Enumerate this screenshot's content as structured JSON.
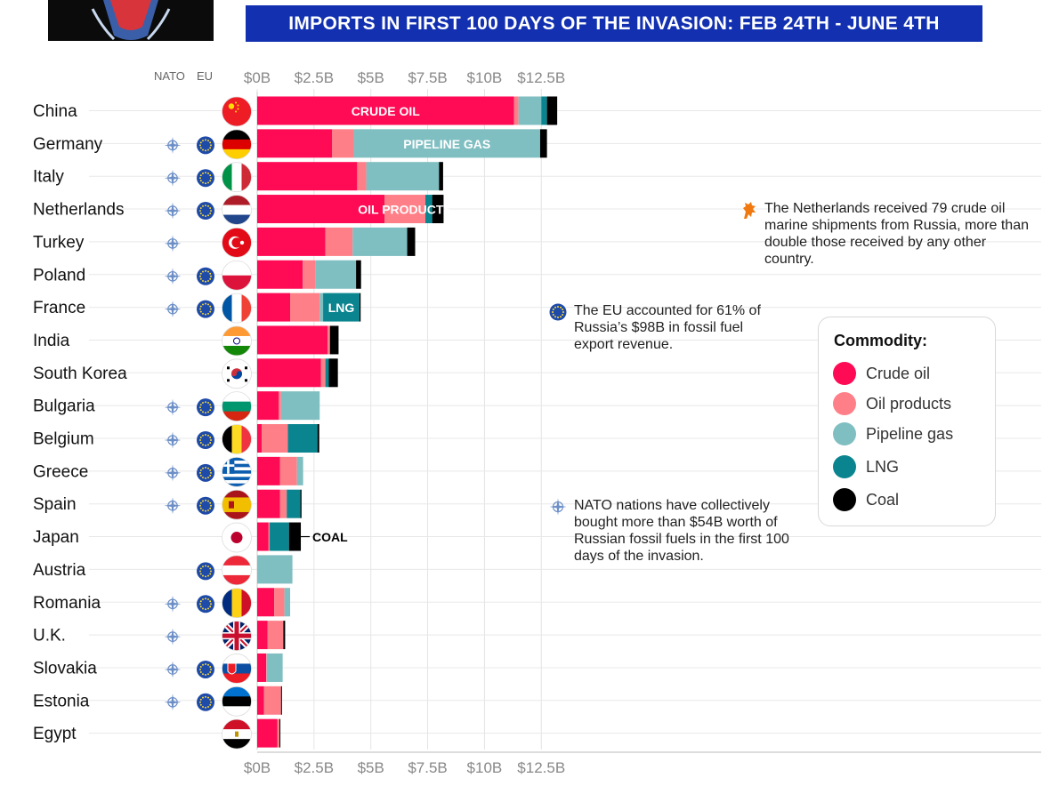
{
  "header": {
    "banner_title": "IMPORTS IN FIRST 100 DAYS OF THE INVASION:  FEB 24TH - JUNE 4TH"
  },
  "columns": {
    "nato": "NATO",
    "eu": "EU"
  },
  "colors": {
    "crude_oil": "#ff0a54",
    "oil_products": "#ff7f88",
    "pipeline_gas": "#7fbec1",
    "lng": "#0a858f",
    "coal": "#000000",
    "nato_icon": "#6c8fc7",
    "eu_icon": "#1e4aa8",
    "netherlands_icon": "#f07a10",
    "banner": "#1230b0"
  },
  "legend": {
    "title": "Commodity:",
    "items": [
      "Crude oil",
      "Oil products",
      "Pipeline gas",
      "LNG",
      "Coal"
    ]
  },
  "notes": {
    "netherlands": "The Netherlands received 79 crude oil marine shipments from Russia, more than double those received by any other country.",
    "eu": "The EU accounted for 61% of Russia’s $98B in fossil fuel export revenue.",
    "nato": "NATO nations have collectively bought more than $54B worth of Russian fossil fuels in the first 100 days of the invasion."
  },
  "chart_data": {
    "type": "bar",
    "orientation": "horizontal",
    "stacked": true,
    "xlim": [
      0,
      13.5
    ],
    "x_ticks": [
      {
        "value": 0,
        "label": "$0B"
      },
      {
        "value": 2.5,
        "label": "$2.5B"
      },
      {
        "value": 5,
        "label": "$5B"
      },
      {
        "value": 7.5,
        "label": "$7.5B"
      },
      {
        "value": 10,
        "label": "$10B"
      },
      {
        "value": 12.5,
        "label": "$12.5B"
      }
    ],
    "grid": true,
    "categories": [
      "China",
      "Germany",
      "Italy",
      "Netherlands",
      "Turkey",
      "Poland",
      "France",
      "India",
      "South Korea",
      "Bulgaria",
      "Belgium",
      "Greece",
      "Spain",
      "Japan",
      "Austria",
      "Romania",
      "U.K.",
      "Slovakia",
      "Estonia",
      "Egypt"
    ],
    "series": [
      {
        "name": "Crude oil",
        "values": [
          11.3,
          3.3,
          4.4,
          5.6,
          3.0,
          2.0,
          1.45,
          3.1,
          2.8,
          0.95,
          0.2,
          1.0,
          1.0,
          0.5,
          0,
          0.75,
          0.45,
          0.4,
          0.3,
          0.88
        ]
      },
      {
        "name": "Oil products",
        "values": [
          0.2,
          0.95,
          0.4,
          1.8,
          1.2,
          0.55,
          1.3,
          0.1,
          0.2,
          0.1,
          1.15,
          0.75,
          0.3,
          0.05,
          0,
          0.45,
          0.7,
          0.02,
          0.75,
          0.1
        ]
      },
      {
        "name": "Pipeline gas",
        "values": [
          1.0,
          8.2,
          3.2,
          0,
          2.4,
          1.8,
          0.15,
          0,
          0,
          1.7,
          0,
          0.27,
          0,
          0,
          1.55,
          0.25,
          0,
          0.7,
          0,
          0
        ]
      },
      {
        "name": "LNG",
        "values": [
          0.25,
          0,
          0,
          0.3,
          0,
          0,
          1.6,
          0,
          0.15,
          0,
          1.3,
          0,
          0.6,
          0.85,
          0,
          0,
          0,
          0,
          0,
          0
        ]
      },
      {
        "name": "Coal",
        "values": [
          0.45,
          0.3,
          0.18,
          0.5,
          0.35,
          0.22,
          0.05,
          0.38,
          0.4,
          0,
          0.08,
          0,
          0.05,
          0.52,
          0,
          0,
          0.08,
          0,
          0.04,
          0.04
        ]
      }
    ],
    "nato": [
      false,
      true,
      true,
      true,
      true,
      true,
      true,
      false,
      false,
      true,
      true,
      true,
      true,
      false,
      false,
      true,
      true,
      true,
      true,
      false
    ],
    "eu": [
      false,
      true,
      true,
      true,
      false,
      true,
      true,
      false,
      false,
      true,
      true,
      true,
      true,
      false,
      true,
      true,
      false,
      true,
      true,
      false
    ],
    "segment_labels": [
      {
        "row": 0,
        "series": 0,
        "text": "CRUDE OIL"
      },
      {
        "row": 1,
        "series": 2,
        "text": "PIPELINE GAS"
      },
      {
        "row": 3,
        "series": 1,
        "text": "OIL PRODUCTS"
      },
      {
        "row": 6,
        "series": 3,
        "text": "LNG"
      }
    ],
    "outside_labels": [
      {
        "row": 13,
        "text": "COAL"
      }
    ]
  }
}
